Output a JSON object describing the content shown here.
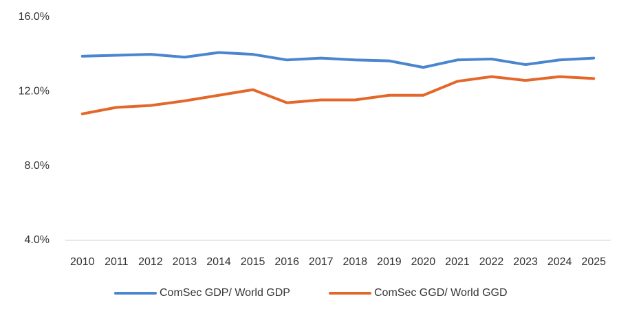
{
  "chart_data": {
    "type": "line",
    "categories": [
      "2010",
      "2011",
      "2012",
      "2013",
      "2014",
      "2015",
      "2016",
      "2017",
      "2018",
      "2019",
      "2020",
      "2021",
      "2022",
      "2023",
      "2024",
      "2025"
    ],
    "series": [
      {
        "name": "ComSec GDP/ World GDP",
        "color": "#4a86cf",
        "values": [
          13.9,
          13.95,
          14.0,
          13.85,
          14.1,
          14.0,
          13.7,
          13.8,
          13.7,
          13.65,
          13.3,
          13.7,
          13.75,
          13.45,
          13.7,
          13.8
        ]
      },
      {
        "name": "ComSec GGD/ World GGD",
        "color": "#e4672a",
        "values": [
          10.8,
          11.15,
          11.25,
          11.5,
          11.8,
          12.1,
          11.4,
          11.55,
          11.55,
          11.8,
          11.8,
          12.55,
          12.8,
          12.6,
          12.8,
          12.7
        ]
      }
    ],
    "ylim": [
      4,
      16
    ],
    "yticks": [
      {
        "value": 4,
        "label": "4.0%"
      },
      {
        "value": 8,
        "label": "8.0%"
      },
      {
        "value": 12,
        "label": "12.0%"
      },
      {
        "value": 16,
        "label": "16.0%"
      }
    ],
    "grid": false,
    "legend": "bottom"
  }
}
